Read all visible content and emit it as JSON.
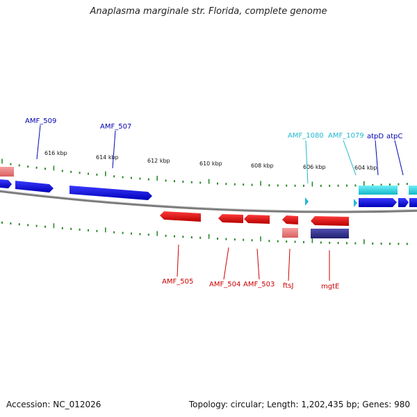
{
  "title": "Anaplasma marginale str. Florida, complete genome",
  "footer": {
    "accession": "Accession: NC_012026",
    "summary": "Topology: circular; Length: 1,202,435 bp; Genes: 980"
  },
  "colors": {
    "forward_cds": "#1010e0",
    "reverse_cds": "#e01010",
    "forward_rna": "#20c8d8",
    "reverse_pseudo": "#e88080",
    "reverse_purple": "#3a3a90",
    "tick": "#2a8a2a",
    "backbone": "#888888",
    "label_forward": "#0000b0",
    "label_rna": "#20b8d0",
    "label_reverse": "#cc0000"
  },
  "ticks": {
    "labels": [
      "616 kbp",
      "614 kbp",
      "612 kbp",
      "610 kbp",
      "608 kbp",
      "606 kbp",
      "604 kbp"
    ]
  },
  "gene_labels": {
    "forward": [
      "AMF_509",
      "AMF_507",
      "atpD",
      "atpC"
    ],
    "rna": [
      "AMF_1080",
      "AMF_1079"
    ],
    "reverse": [
      "AMF_505",
      "AMF_504",
      "AMF_503",
      "ftsJ",
      "mgtE"
    ]
  }
}
